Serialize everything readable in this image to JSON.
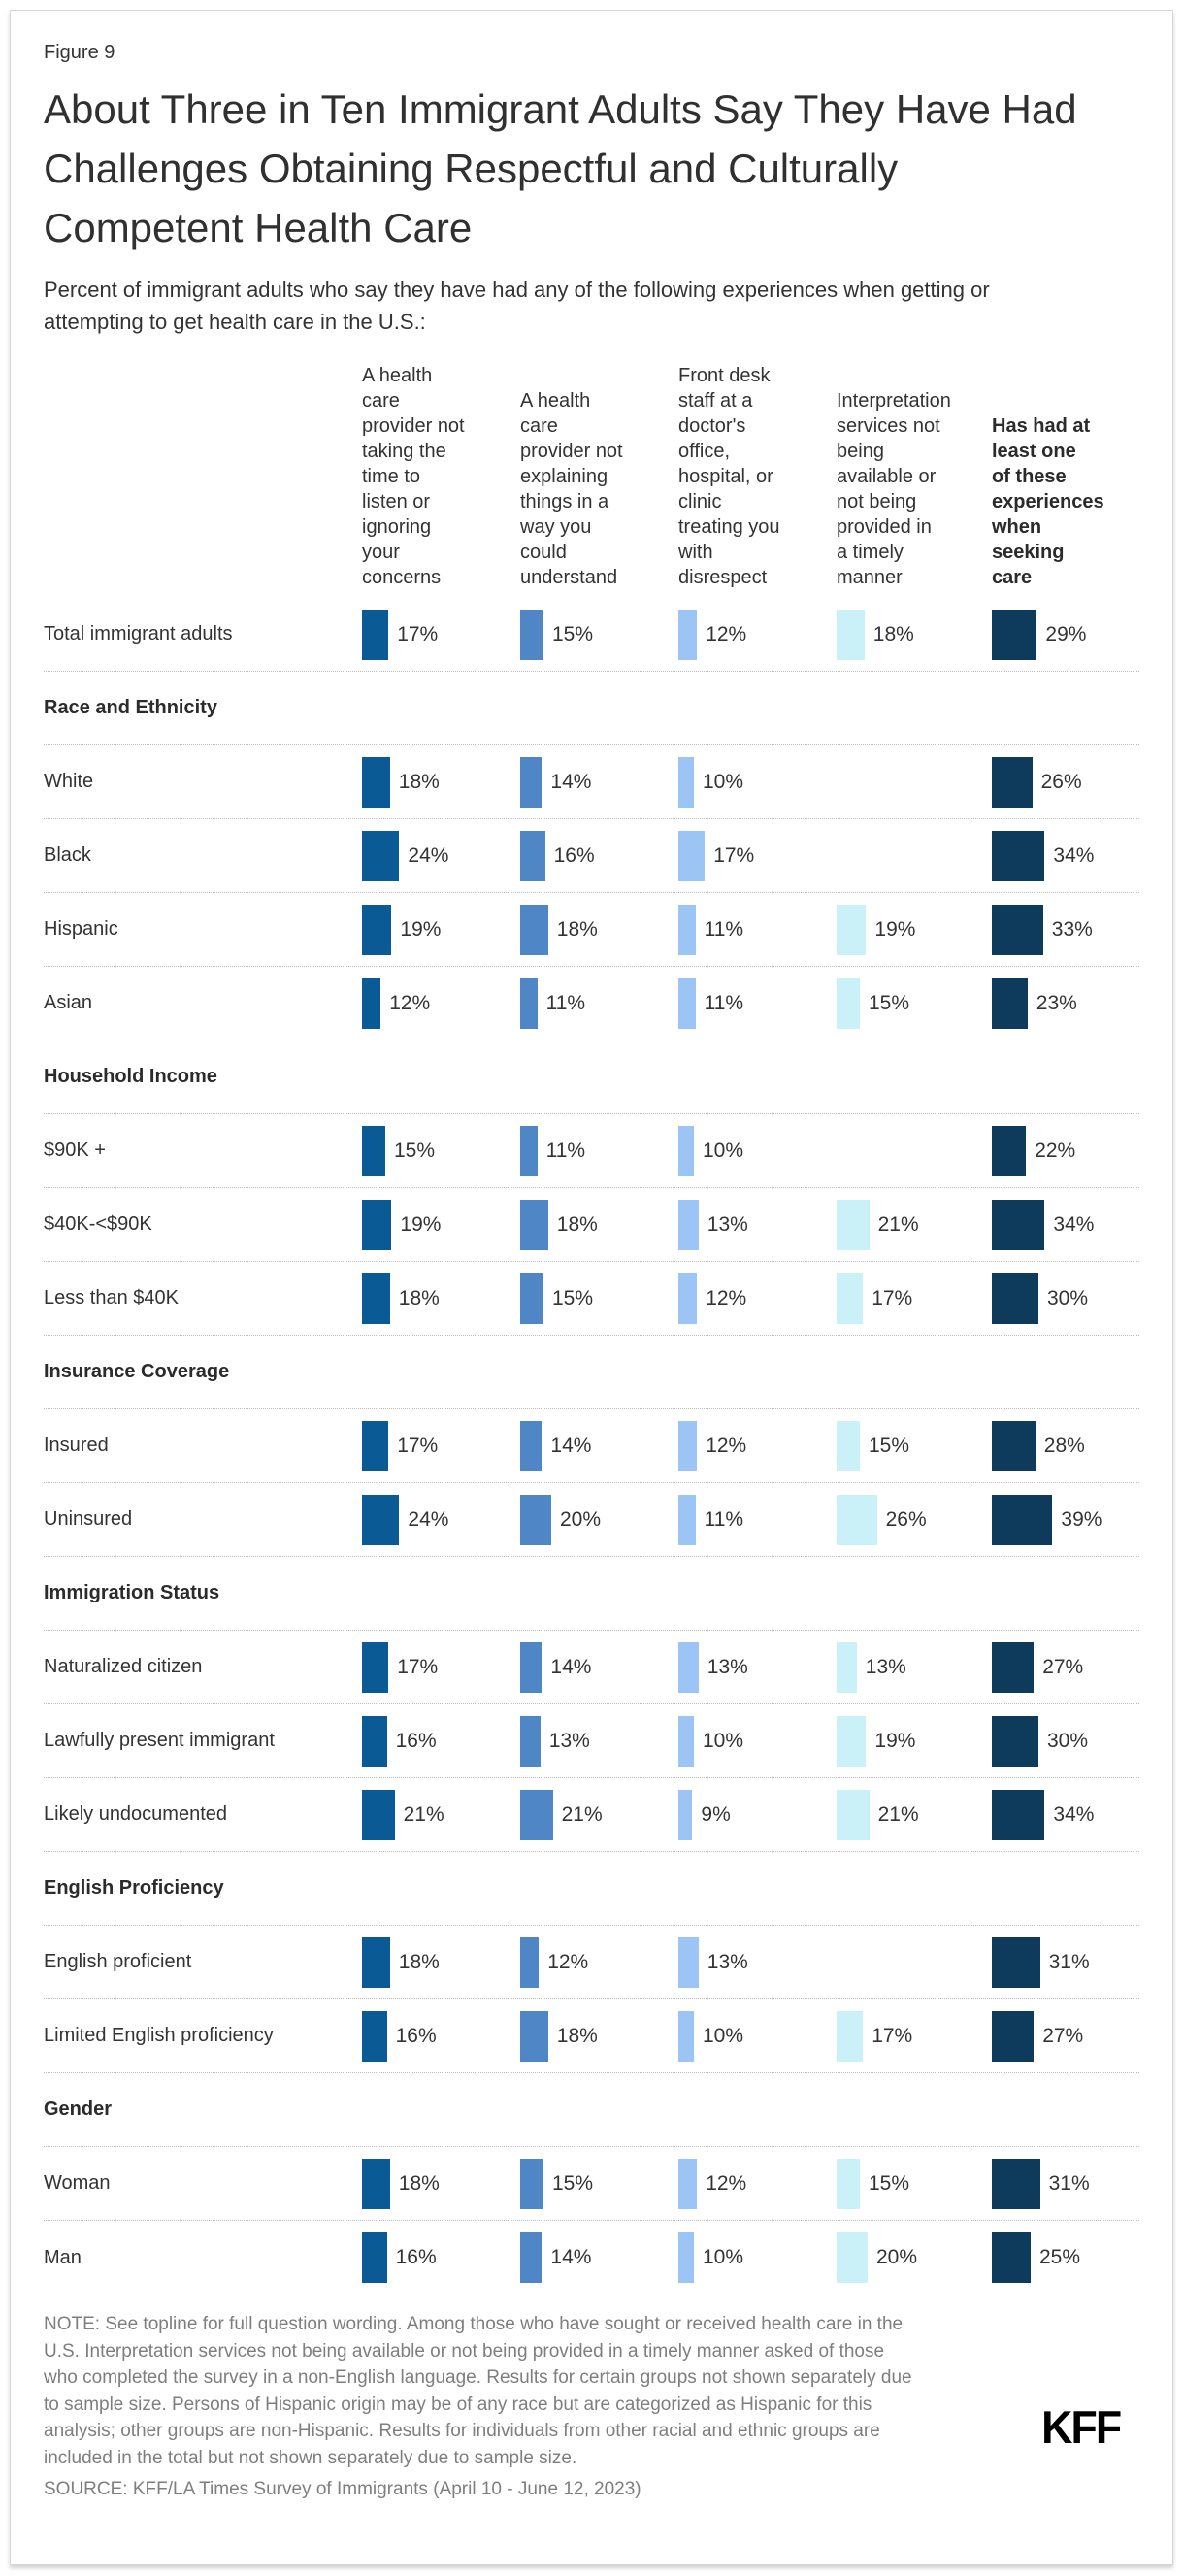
{
  "figure_label": "Figure 9",
  "title": "About Three in Ten Immigrant Adults Say They Have Had Challenges Obtaining Respectful and Culturally Competent Health Care",
  "subtitle": "Percent of immigrant adults who say they have had any of the following experiences when getting or attempting to get health care in the U.S.:",
  "logo_text": "KFF",
  "note": "NOTE: See topline for full question wording. Among those who have sought or received health care in the\nU.S. Interpretation services not being available or not being provided in a timely manner asked of those\nwho completed the survey in a non-English language. Results for certain groups not shown separately due\nto sample size. Persons of Hispanic origin may be of any race but are categorized as Hispanic for this\nanalysis; other groups are non-Hispanic. Results for individuals from other racial and ethnic groups are\nincluded in the total but not shown separately due to sample size.",
  "source": "SOURCE: KFF/LA Times Survey of Immigrants (April 10 - June 12, 2023)",
  "chart_data": {
    "type": "bar",
    "orientation": "horizontal-mini-bars",
    "unit": "%",
    "columns": [
      {
        "label": "A health\ncare\nprovider not\ntaking the\ntime to\nlisten or\nignoring\nyour\nconcerns",
        "color": "#0A5A96",
        "bold": false
      },
      {
        "label": "A health\ncare\nprovider not\nexplaining\nthings in a\nway you\ncould\nunderstand",
        "color": "#4E86C6",
        "bold": false
      },
      {
        "label": "Front desk\nstaff at a\ndoctor's\noffice,\nhospital, or\nclinic\ntreating you\nwith\ndisrespect",
        "color": "#9CC4F5",
        "bold": false
      },
      {
        "label": "Interpretation\nservices not\nbeing\navailable or\nnot being\nprovided in\na timely\nmanner",
        "color": "#CBF1F8",
        "bold": false
      },
      {
        "label": "Has had at\nleast one\nof these\nexperiences\nwhen\nseeking\ncare",
        "color": "#0E3A5C",
        "bold": true
      }
    ],
    "rows": [
      {
        "type": "data",
        "label": "Total immigrant adults",
        "values": [
          17,
          15,
          12,
          18,
          29
        ]
      },
      {
        "type": "section",
        "label": "Race and Ethnicity"
      },
      {
        "type": "data",
        "label": "White",
        "values": [
          18,
          14,
          10,
          null,
          26
        ]
      },
      {
        "type": "data",
        "label": "Black",
        "values": [
          24,
          16,
          17,
          null,
          34
        ]
      },
      {
        "type": "data",
        "label": "Hispanic",
        "values": [
          19,
          18,
          11,
          19,
          33
        ]
      },
      {
        "type": "data",
        "label": "Asian",
        "values": [
          12,
          11,
          11,
          15,
          23
        ]
      },
      {
        "type": "section",
        "label": "Household Income"
      },
      {
        "type": "data",
        "label": "$90K +",
        "values": [
          15,
          11,
          10,
          null,
          22
        ]
      },
      {
        "type": "data",
        "label": "$40K-<$90K",
        "values": [
          19,
          18,
          13,
          21,
          34
        ]
      },
      {
        "type": "data",
        "label": "Less than $40K",
        "values": [
          18,
          15,
          12,
          17,
          30
        ]
      },
      {
        "type": "section",
        "label": "Insurance Coverage"
      },
      {
        "type": "data",
        "label": "Insured",
        "values": [
          17,
          14,
          12,
          15,
          28
        ]
      },
      {
        "type": "data",
        "label": "Uninsured",
        "values": [
          24,
          20,
          11,
          26,
          39
        ]
      },
      {
        "type": "section",
        "label": "Immigration Status"
      },
      {
        "type": "data",
        "label": "Naturalized citizen",
        "values": [
          17,
          14,
          13,
          13,
          27
        ]
      },
      {
        "type": "data",
        "label": "Lawfully present immigrant",
        "values": [
          16,
          13,
          10,
          19,
          30
        ]
      },
      {
        "type": "data",
        "label": "Likely undocumented",
        "values": [
          21,
          21,
          9,
          21,
          34
        ]
      },
      {
        "type": "section",
        "label": "English Proficiency"
      },
      {
        "type": "data",
        "label": "English proficient",
        "values": [
          18,
          12,
          13,
          null,
          31
        ]
      },
      {
        "type": "data",
        "label": "Limited English proficiency",
        "values": [
          16,
          18,
          10,
          17,
          27
        ]
      },
      {
        "type": "section",
        "label": "Gender"
      },
      {
        "type": "data",
        "label": "Woman",
        "values": [
          18,
          15,
          12,
          15,
          31
        ]
      },
      {
        "type": "data",
        "label": "Man",
        "values": [
          16,
          14,
          10,
          20,
          25
        ]
      }
    ]
  }
}
